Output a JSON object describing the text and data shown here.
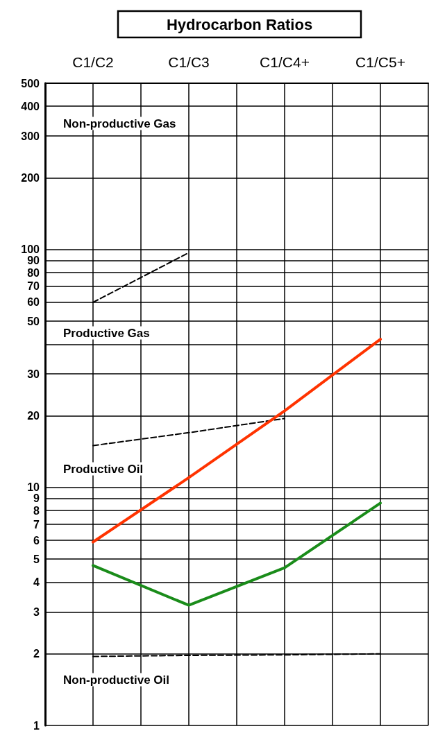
{
  "chart_data": {
    "type": "line",
    "title": "Hydrocarbon Ratios",
    "categories": [
      "C1/C2",
      "C1/C3",
      "C1/C4+",
      "C1/C5+"
    ],
    "ylim": [
      1,
      500
    ],
    "yticks": [
      1,
      2,
      3,
      4,
      5,
      6,
      7,
      8,
      9,
      10,
      20,
      30,
      {
        "value": 40,
        "label": null
      },
      50,
      60,
      70,
      80,
      90,
      100,
      200,
      300,
      400,
      500
    ],
    "log": true,
    "grid": true,
    "marker": "none",
    "series": [
      {
        "values": [
          5.9,
          11,
          21,
          42
        ],
        "color": "#ff3300",
        "line_style": "solid"
      },
      {
        "values": [
          4.7,
          3.2,
          4.6,
          8.6
        ],
        "color": "#1a8c1a",
        "line_style": "solid"
      },
      {
        "values": [
          60,
          97,
          null,
          null
        ],
        "color": "#000000",
        "line_style": "dashed"
      },
      {
        "values": [
          15,
          17,
          19.5,
          null
        ],
        "color": "#000000",
        "line_style": "dashed"
      },
      {
        "values": [
          1.95,
          1.97,
          1.98,
          2
        ],
        "color": "#000000",
        "line_style": "dashed"
      }
    ],
    "annotations": [
      "Non-productive Gas",
      "Productive Gas",
      "Productive Oil",
      "Non-productive Oil"
    ]
  }
}
